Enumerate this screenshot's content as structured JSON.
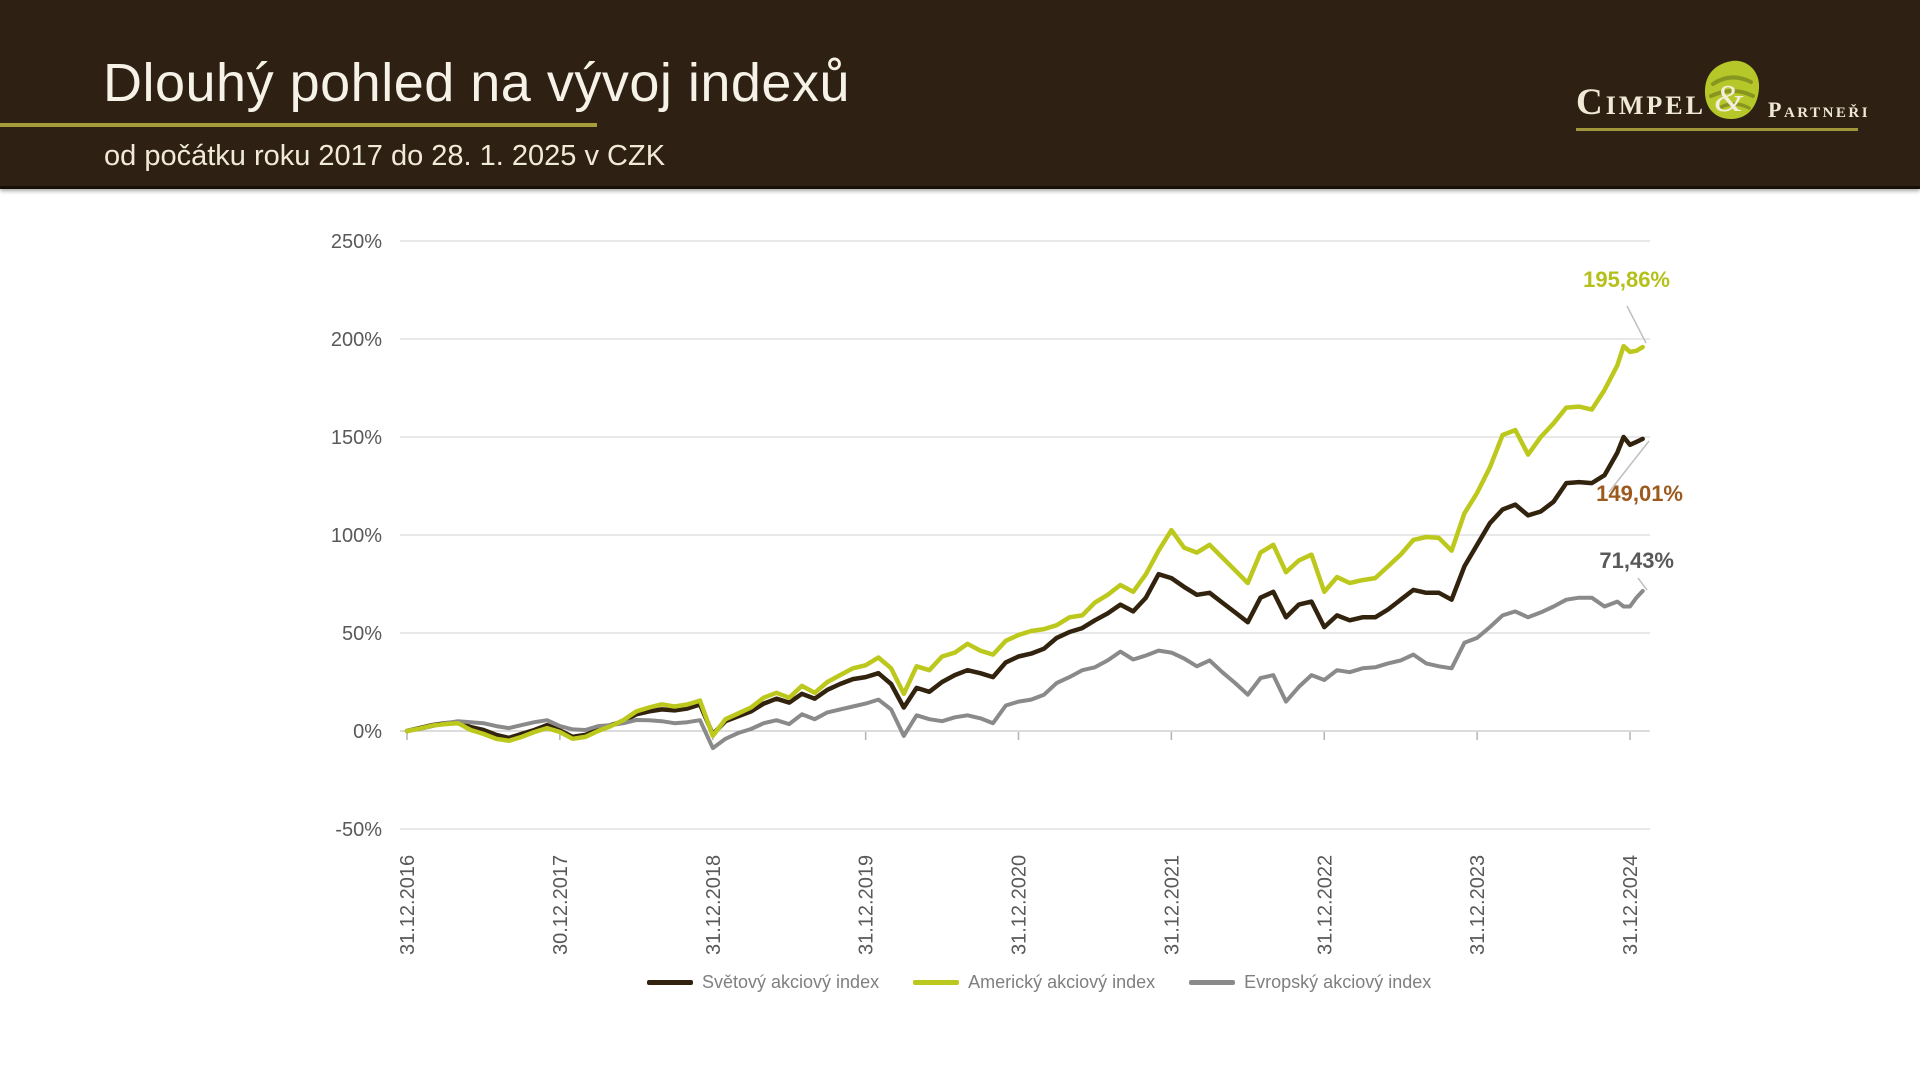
{
  "header": {
    "title": "Dlouhý pohled na vývoj indexů",
    "subtitle": "od počátku roku 2017 do 28. 1. 2025 v CZK"
  },
  "logo": {
    "name": "Cimpel",
    "ampersand": "&",
    "suffix": "Partneři"
  },
  "colors": {
    "header_bg": "#2e2114",
    "accent_olive": "#a89b3c",
    "grid": "#dadada",
    "zero_axis": "#c6c6c6",
    "axis_text": "#595959",
    "legend_text": "#7f7f7f"
  },
  "chart_data": {
    "type": "line",
    "title": "Dlouhý pohled na vývoj indexů",
    "subtitle": "od počátku roku 2017 do 28. 1. 2025 v CZK",
    "unit": "percent return in CZK",
    "grid": "horizontal",
    "legend_position": "bottom",
    "x_axis": {
      "labels": [
        "31.12.2016",
        "30.12.2017",
        "31.12.2018",
        "31.12.2019",
        "31.12.2020",
        "31.12.2021",
        "31.12.2022",
        "31.12.2023",
        "31.12.2024"
      ]
    },
    "y_axis": {
      "ticks": [
        "250%",
        "200%",
        "150%",
        "100%",
        "50%",
        "0%",
        "-50%"
      ],
      "values": [
        250,
        200,
        150,
        100,
        50,
        0,
        -50
      ],
      "min": -50,
      "max": 250
    },
    "t_years": [
      0,
      0.0833,
      0.1667,
      0.25,
      0.3333,
      0.4167,
      0.5,
      0.5833,
      0.6667,
      0.75,
      0.8333,
      0.9167,
      1,
      1.0833,
      1.1667,
      1.25,
      1.3333,
      1.4167,
      1.5,
      1.5833,
      1.6667,
      1.75,
      1.8333,
      1.9167,
      2,
      2.0833,
      2.1667,
      2.25,
      2.3333,
      2.4167,
      2.5,
      2.5833,
      2.6667,
      2.75,
      2.8333,
      2.9167,
      3,
      3.0833,
      3.1667,
      3.25,
      3.3333,
      3.4167,
      3.5,
      3.5833,
      3.6667,
      3.75,
      3.8333,
      3.9167,
      4,
      4.0833,
      4.1667,
      4.25,
      4.3333,
      4.4167,
      4.5,
      4.5833,
      4.6667,
      4.75,
      4.8333,
      4.9167,
      5,
      5.0833,
      5.1667,
      5.25,
      5.3333,
      5.4167,
      5.5,
      5.5833,
      5.6667,
      5.75,
      5.8333,
      5.9167,
      6,
      6.0833,
      6.1667,
      6.25,
      6.3333,
      6.4167,
      6.5,
      6.5833,
      6.6667,
      6.75,
      6.8333,
      6.9167,
      7,
      7.0833,
      7.1667,
      7.25,
      7.3333,
      7.4167,
      7.5,
      7.5833,
      7.6667,
      7.75,
      7.8333,
      7.9167,
      7.9583,
      8.0,
      8.0417,
      8.0833
    ],
    "series": [
      {
        "name": "Světový akciový index",
        "color": "#32230e",
        "label_color": "#9c5a1e",
        "final_label": "149,01%",
        "final_value": 149.01,
        "values": [
          0,
          1.5,
          3,
          4,
          4.5,
          2,
          0.5,
          -2,
          -3.5,
          -1.5,
          0.5,
          3,
          0.3,
          -3,
          -2,
          0.8,
          3,
          5,
          8.5,
          10,
          11,
          10.5,
          11.5,
          13.5,
          -1.7,
          5,
          7.5,
          10,
          14,
          16.5,
          14.5,
          19,
          16.5,
          21,
          24,
          26.5,
          27.5,
          29.5,
          24,
          12,
          22,
          20,
          25,
          28.5,
          31,
          29.5,
          27.5,
          35,
          38,
          39.5,
          42,
          47.5,
          50.5,
          52.5,
          56.5,
          60,
          64.5,
          61,
          68,
          80,
          78,
          73.5,
          69.5,
          70.5,
          65.5,
          60.5,
          55.5,
          68,
          71,
          58,
          64.5,
          66,
          53,
          59,
          56.5,
          58,
          58,
          62,
          67,
          72,
          70.5,
          70.5,
          67,
          84,
          95,
          106,
          113,
          115.5,
          110,
          112,
          117,
          126.5,
          127,
          126.5,
          130.5,
          142,
          150,
          146,
          147.5,
          149.01
        ]
      },
      {
        "name": "Americký akciový index",
        "color": "#bdc81d",
        "label_color": "#b5c01b",
        "final_label": "195,86%",
        "final_value": 195.86,
        "values": [
          0,
          1.2,
          2.8,
          3.5,
          4,
          0.5,
          -1.5,
          -4,
          -5,
          -3,
          -0.5,
          1.5,
          -0.5,
          -4,
          -3,
          0,
          2.5,
          5.6,
          10,
          12,
          13.6,
          12.5,
          13.5,
          15.5,
          -2.5,
          6,
          9,
          12,
          17,
          19.5,
          17,
          23,
          19.5,
          25,
          28.5,
          32,
          33.5,
          37.5,
          32,
          19,
          33,
          31,
          38,
          40,
          44.5,
          41,
          39,
          46,
          49,
          51,
          52,
          54,
          58,
          59,
          65.5,
          69.5,
          74.5,
          71,
          80,
          92,
          102.5,
          93.5,
          91,
          95,
          88.5,
          82,
          75.5,
          91,
          95,
          81,
          87,
          90,
          71,
          78.5,
          75.5,
          77,
          78,
          84,
          90,
          97.5,
          99,
          98.5,
          92,
          111,
          121.5,
          134.5,
          151,
          153.5,
          141,
          150,
          157,
          165,
          165.5,
          164,
          174,
          186.5,
          196.4,
          193.4,
          194,
          195.86
        ]
      },
      {
        "name": "Evropský akciový index",
        "color": "#8a8a8a",
        "label_color": "#595959",
        "final_label": "71,43%",
        "final_value": 71.43,
        "values": [
          0,
          1,
          2.5,
          4,
          5,
          4.5,
          4,
          2.5,
          1.5,
          3,
          4.5,
          5.5,
          2.5,
          0.8,
          0.5,
          2.5,
          3,
          4,
          5.6,
          5.5,
          5,
          4,
          4.5,
          5.5,
          -8.7,
          -4,
          -1,
          1,
          4,
          5.5,
          3.5,
          8.5,
          6,
          9.5,
          11,
          12.5,
          14,
          16,
          11,
          -2.5,
          8,
          6,
          5,
          7,
          8,
          6.5,
          4,
          13,
          15,
          16,
          18.5,
          24.5,
          27.5,
          31,
          32.5,
          36,
          40.5,
          36.5,
          38.5,
          41,
          40,
          37,
          33,
          36,
          30,
          24.5,
          18.5,
          27,
          28.5,
          15,
          22.5,
          28.5,
          26,
          31,
          30,
          32,
          32.5,
          34.5,
          36,
          39,
          34.5,
          33,
          32,
          45,
          47.5,
          53,
          59,
          61,
          58,
          60.5,
          63.5,
          67,
          68,
          68,
          63.5,
          66,
          63.5,
          63.5,
          68,
          71.43
        ]
      }
    ]
  }
}
